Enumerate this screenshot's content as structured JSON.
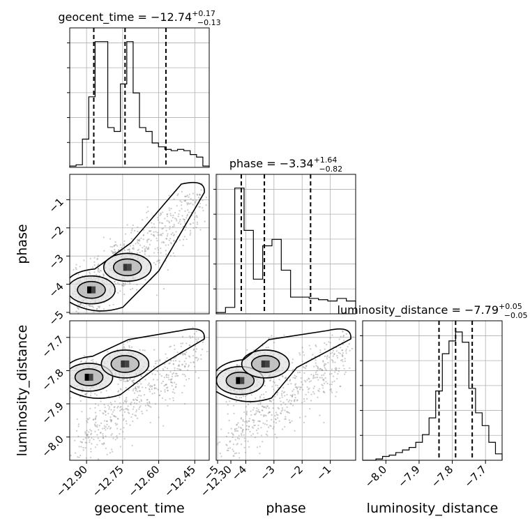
{
  "chart_data": {
    "type": "corner",
    "parameters": [
      "geocent_time",
      "phase",
      "luminosity_distance"
    ],
    "titles": [
      {
        "param": "geocent_time",
        "prefix": "geocent_time = −12.74",
        "plus": "+0.17",
        "minus": "−0.13"
      },
      {
        "param": "phase",
        "prefix": "phase = −3.34",
        "plus": "+1.64",
        "minus": "−0.82"
      },
      {
        "param": "luminosity_distance",
        "prefix": "luminosity_distance = −7.79",
        "plus": "+0.05",
        "minus": "−0.05"
      }
    ],
    "axis_labels": {
      "geocent_time": "geocent_time",
      "phase": "phase",
      "luminosity_distance": "luminosity_distance"
    },
    "ranges": {
      "geocent_time": [
        -12.97,
        -12.39
      ],
      "phase": [
        -5.05,
        -0.1
      ],
      "luminosity_distance": [
        -8.07,
        -7.65
      ]
    },
    "ticks": {
      "geocent_time": {
        "values": [
          -12.9,
          -12.75,
          -12.6,
          -12.45,
          -12.3
        ],
        "labels": [
          "−12.90",
          "−12.75",
          "−12.60",
          "−12.45",
          "−12.30"
        ]
      },
      "phase_x": {
        "values": [
          -5,
          -4,
          -3,
          -2,
          -1
        ],
        "labels": [
          "−5",
          "−4",
          "−3",
          "−2",
          "−1"
        ]
      },
      "phase_y": {
        "values": [
          -5,
          -4,
          -3,
          -2,
          -1
        ],
        "labels": [
          "−5",
          "−4",
          "−3",
          "−2",
          "−1"
        ]
      },
      "luminosity_distance_x": {
        "values": [
          -8.0,
          -7.9,
          -7.8,
          -7.7
        ],
        "labels": [
          "−8.0",
          "−7.9",
          "−7.8",
          "−7.7"
        ]
      },
      "luminosity_distance_y": {
        "values": [
          -8.0,
          -7.9,
          -7.8,
          -7.7
        ],
        "labels": [
          "−8.0",
          "−7.9",
          "−7.8",
          "−7.7"
        ]
      }
    },
    "quantiles": {
      "geocent_time": [
        -12.87,
        -12.74,
        -12.57
      ],
      "phase": [
        -4.16,
        -3.34,
        -1.7
      ],
      "luminosity_distance": [
        -7.84,
        -7.79,
        -7.74
      ]
    },
    "hist_geocent_time": [
      0.01,
      0.02,
      0.22,
      0.55,
      0.98,
      0.98,
      0.31,
      0.28,
      0.65,
      0.98,
      0.58,
      0.31,
      0.28,
      0.19,
      0.16,
      0.14,
      0.13,
      0.14,
      0.13,
      0.1,
      0.08,
      0.01
    ],
    "hist_phase": [
      0.01,
      0.05,
      0.98,
      0.65,
      0.27,
      0.53,
      0.58,
      0.34,
      0.13,
      0.13,
      0.12,
      0.11,
      0.1,
      0.12,
      0.1
    ],
    "hist_luminosity_distance": [
      0.0,
      0.0,
      0.01,
      0.03,
      0.04,
      0.06,
      0.08,
      0.1,
      0.14,
      0.2,
      0.33,
      0.54,
      0.83,
      0.93,
      1.0,
      0.92,
      0.56,
      0.37,
      0.27,
      0.14,
      0.05
    ],
    "hist2d_blobs": [
      {
        "x": "geocent_time",
        "y": "phase",
        "cx": -12.88,
        "cy": -4.2
      },
      {
        "x": "geocent_time",
        "y": "phase",
        "cx": -12.73,
        "cy": -3.4
      },
      {
        "x": "geocent_time",
        "y": "luminosity_distance",
        "cx": -12.89,
        "cy": -7.82
      },
      {
        "x": "geocent_time",
        "y": "luminosity_distance",
        "cx": -12.74,
        "cy": -7.78
      },
      {
        "x": "phase",
        "y": "luminosity_distance",
        "cx": -4.2,
        "cy": -7.83
      },
      {
        "x": "phase",
        "y": "luminosity_distance",
        "cx": -3.3,
        "cy": -7.78
      }
    ],
    "grid": true,
    "legend": "none"
  }
}
